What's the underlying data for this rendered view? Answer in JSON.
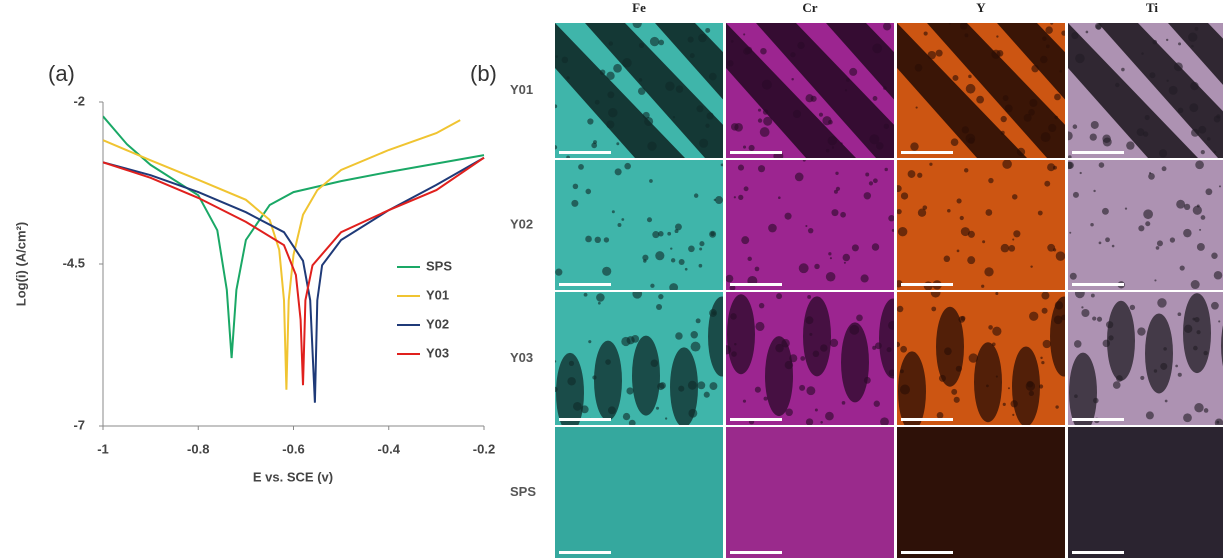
{
  "chart_data": {
    "type": "line",
    "panel_label": "(a)",
    "x_label": "E vs. SCE (v)",
    "y_label": "Log(i) (A/cm²)",
    "xlim": [
      -1,
      -0.2
    ],
    "xticks": [
      -1,
      -0.8,
      -0.6,
      -0.4,
      -0.2
    ],
    "ylim": [
      -7,
      -2
    ],
    "yticks": [
      -2,
      -4.5,
      -7
    ],
    "grid": false,
    "legend": "right",
    "series": [
      {
        "name": "SPS",
        "color": "#1aa866",
        "x": [
          -1,
          -0.95,
          -0.9,
          -0.8,
          -0.76,
          -0.74,
          -0.73,
          -0.72,
          -0.7,
          -0.65,
          -0.6,
          -0.5,
          -0.4,
          -0.2
        ],
        "values": [
          -2.22,
          -2.65,
          -2.97,
          -3.44,
          -3.98,
          -4.9,
          -5.95,
          -4.9,
          -4.13,
          -3.59,
          -3.39,
          -3.22,
          -3.08,
          -2.82
        ]
      },
      {
        "name": "Y01",
        "color": "#f0c431",
        "x": [
          -1,
          -0.9,
          -0.8,
          -0.7,
          -0.65,
          -0.63,
          -0.62,
          -0.615,
          -0.61,
          -0.6,
          -0.58,
          -0.55,
          -0.5,
          -0.4,
          -0.3,
          -0.25
        ],
        "values": [
          -2.59,
          -2.9,
          -3.2,
          -3.51,
          -3.82,
          -4.28,
          -5.06,
          -6.44,
          -5.06,
          -4.36,
          -3.74,
          -3.36,
          -3.05,
          -2.74,
          -2.48,
          -2.28
        ]
      },
      {
        "name": "Y02",
        "color": "#1f3a78",
        "x": [
          -1,
          -0.9,
          -0.8,
          -0.7,
          -0.62,
          -0.58,
          -0.565,
          -0.555,
          -0.55,
          -0.54,
          -0.5,
          -0.4,
          -0.3,
          -0.2
        ],
        "values": [
          -2.93,
          -3.13,
          -3.39,
          -3.7,
          -4.01,
          -4.45,
          -5.06,
          -6.64,
          -5.06,
          -4.52,
          -4.13,
          -3.67,
          -3.28,
          -2.86
        ]
      },
      {
        "name": "Y03",
        "color": "#e0201d",
        "x": [
          -1,
          -0.9,
          -0.8,
          -0.7,
          -0.62,
          -0.595,
          -0.585,
          -0.58,
          -0.575,
          -0.56,
          -0.5,
          -0.4,
          -0.3,
          -0.2
        ],
        "values": [
          -2.93,
          -3.17,
          -3.48,
          -3.85,
          -4.21,
          -4.67,
          -5.36,
          -6.37,
          -5.06,
          -4.52,
          -4.01,
          -3.67,
          -3.36,
          -2.86
        ]
      }
    ]
  },
  "panel_b": {
    "label": "(b)",
    "columns": [
      "Fe",
      "Cr",
      "Y",
      "Ti"
    ],
    "rows": [
      "Y01",
      "Y02",
      "Y03",
      "SPS"
    ]
  }
}
